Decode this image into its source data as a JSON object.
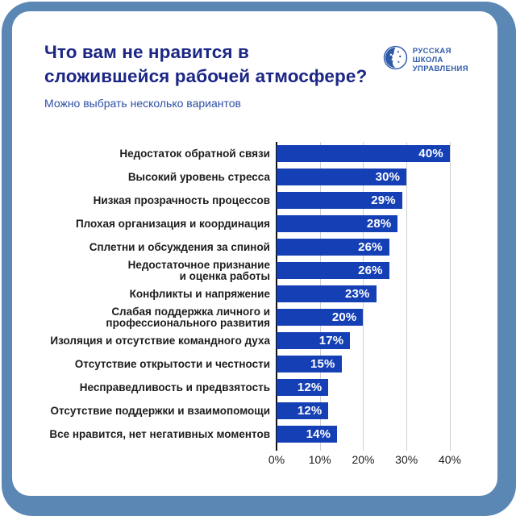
{
  "page": {
    "title": "Что вам не нравится в сложившейся рабочей атмосфере?",
    "subtitle": "Можно выбрать несколько вариантов"
  },
  "logo": {
    "name": "Русская школа управления",
    "lines": [
      "РУССКАЯ",
      "ШКОЛА",
      "УПРАВЛЕНИЯ"
    ]
  },
  "colors": {
    "frame": "#5b87b4",
    "card": "#ffffff",
    "title": "#1b2685",
    "subtitle": "#2d4fa5",
    "bar": "#1540b5",
    "bar_value_label": "#ffffff",
    "category_label": "#1c1c1e",
    "axis_label": "#1c1c1e",
    "gridline": "#cfcfcf",
    "axis_line": "#111111",
    "logo_blue": "#2f5aa8"
  },
  "chart_data": {
    "type": "bar",
    "orientation": "horizontal",
    "title": "Что вам не нравится в сложившейся рабочей атмосфере?",
    "subtitle": "Можно выбрать несколько вариантов",
    "categories": [
      "Недостаток обратной связи",
      "Высокий уровень стресса",
      "Низкая прозрачность процессов",
      "Плохая организация и координация",
      "Сплетни и обсуждения за спиной",
      "Недостаточное признание и оценка работы",
      "Конфликты и напряжение",
      "Слабая поддержка личного и профессионального развития",
      "Изоляция и отсутствие командного духа",
      "Отсутствие открытости и честности",
      "Несправедливость и предвзятость",
      "Отсутствие поддержки и взаимопомощи",
      "Все нравится, нет негативных моментов"
    ],
    "values": [
      40,
      30,
      29,
      28,
      26,
      26,
      23,
      20,
      17,
      15,
      12,
      12,
      14
    ],
    "rows": [
      {
        "lines": [
          "Недостаток обратной связи"
        ],
        "value": 40,
        "value_label": "40%"
      },
      {
        "lines": [
          "Высокий уровень стресса"
        ],
        "value": 30,
        "value_label": "30%"
      },
      {
        "lines": [
          "Низкая прозрачность процессов"
        ],
        "value": 29,
        "value_label": "29%"
      },
      {
        "lines": [
          "Плохая организация и координация"
        ],
        "value": 28,
        "value_label": "28%"
      },
      {
        "lines": [
          "Сплетни и обсуждения за спиной"
        ],
        "value": 26,
        "value_label": "26%"
      },
      {
        "lines": [
          "Недостаточное признание",
          "и оценка работы"
        ],
        "value": 26,
        "value_label": "26%"
      },
      {
        "lines": [
          "Конфликты и напряжение"
        ],
        "value": 23,
        "value_label": "23%"
      },
      {
        "lines": [
          "Слабая поддержка личного и",
          "профессионального развития"
        ],
        "value": 20,
        "value_label": "20%"
      },
      {
        "lines": [
          "Изоляция и отсутствие командного духа"
        ],
        "value": 17,
        "value_label": "17%"
      },
      {
        "lines": [
          "Отсутствие открытости и честности"
        ],
        "value": 15,
        "value_label": "15%"
      },
      {
        "lines": [
          "Несправедливость и предвзятость"
        ],
        "value": 12,
        "value_label": "12%"
      },
      {
        "lines": [
          "Отсутствие поддержки и взаимопомощи"
        ],
        "value": 12,
        "value_label": "12%"
      },
      {
        "lines": [
          "Все нравится, нет негативных моментов"
        ],
        "value": 14,
        "value_label": "14%"
      }
    ],
    "x_ticks": [
      {
        "value": 0,
        "label": "0%"
      },
      {
        "value": 10,
        "label": "10%"
      },
      {
        "value": 20,
        "label": "20%"
      },
      {
        "value": 30,
        "label": "30%"
      },
      {
        "value": 40,
        "label": "40%"
      }
    ],
    "xlim": [
      0,
      46.9
    ],
    "grid": "vertical-light",
    "legend": "none",
    "value_label_position": "inside-right"
  }
}
